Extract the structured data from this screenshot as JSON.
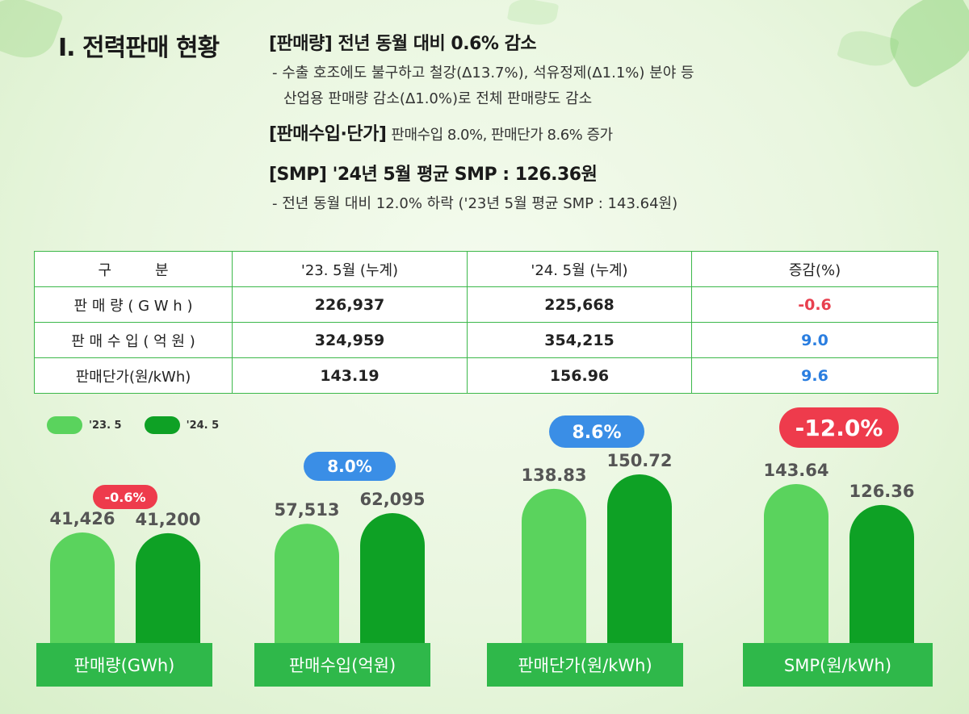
{
  "section_title": "I. 전력판매 현황",
  "summary": {
    "sales_head": "[판매량] 전년 동월 대비 0.6% 감소",
    "sales_line1": "- 수출 호조에도 불구하고 철강(Δ13.7%), 석유정제(Δ1.1%) 분야 등",
    "sales_line2": "산업용 판매량 감소(Δ1.0%)로 전체 판매량도 감소",
    "revenue_head": "[판매수입·단가]",
    "revenue_text": "판매수입 8.0%, 판매단가 8.6% 증가",
    "smp_head": "[SMP] '24년 5월 평균 SMP : 126.36원",
    "smp_line": "- 전년 동월 대비 12.0% 하락 ('23년 5월 평균 SMP : 143.64원)"
  },
  "table": {
    "headers": [
      "구　　　분",
      "'23. 5월 (누계)",
      "'24. 5월 (누계)",
      "증감(%)"
    ],
    "rows": [
      {
        "label": "판 매 량 ( G W h )",
        "v23": "226,937",
        "v24": "225,668",
        "change": "-0.6"
      },
      {
        "label": "판 매 수 입 ( 억 원 )",
        "v23": "324,959",
        "v24": "354,215",
        "change": "9.0"
      },
      {
        "label": "판매단가(원/kWh)",
        "v23": "143.19",
        "v24": "156.96",
        "change": "9.6"
      }
    ]
  },
  "legend": [
    {
      "label": "'23. 5",
      "color": "#5ad35d"
    },
    {
      "label": "'24. 5",
      "color": "#0ea125"
    }
  ],
  "colors": {
    "bar_23": "#5ad35d",
    "bar_24": "#0ea125",
    "category_bg": "#2fb84a",
    "badge_neg": "#ee3b4c",
    "badge_pos": "#3a8ee6"
  },
  "chart_data": [
    {
      "type": "bar",
      "title": "판매량(GWh)",
      "categories": [
        "'23. 5",
        "'24. 5"
      ],
      "values": [
        41426,
        41200
      ],
      "labels": [
        "41,426",
        "41,200"
      ],
      "change_label": "-0.6%",
      "change_sign": "neg"
    },
    {
      "type": "bar",
      "title": "판매수입(억원)",
      "categories": [
        "'23. 5",
        "'24. 5"
      ],
      "values": [
        57513,
        62095
      ],
      "labels": [
        "57,513",
        "62,095"
      ],
      "change_label": "8.0%",
      "change_sign": "pos"
    },
    {
      "type": "bar",
      "title": "판매단가(원/kWh)",
      "categories": [
        "'23. 5",
        "'24. 5"
      ],
      "values": [
        138.83,
        150.72
      ],
      "labels": [
        "138.83",
        "150.72"
      ],
      "change_label": "8.6%",
      "change_sign": "pos"
    },
    {
      "type": "bar",
      "title": "SMP(원/kWh)",
      "categories": [
        "'23. 5",
        "'24. 5"
      ],
      "values": [
        143.64,
        126.36
      ],
      "labels": [
        "143.64",
        "126.36"
      ],
      "change_label": "-12.0%",
      "change_sign": "neg"
    }
  ]
}
